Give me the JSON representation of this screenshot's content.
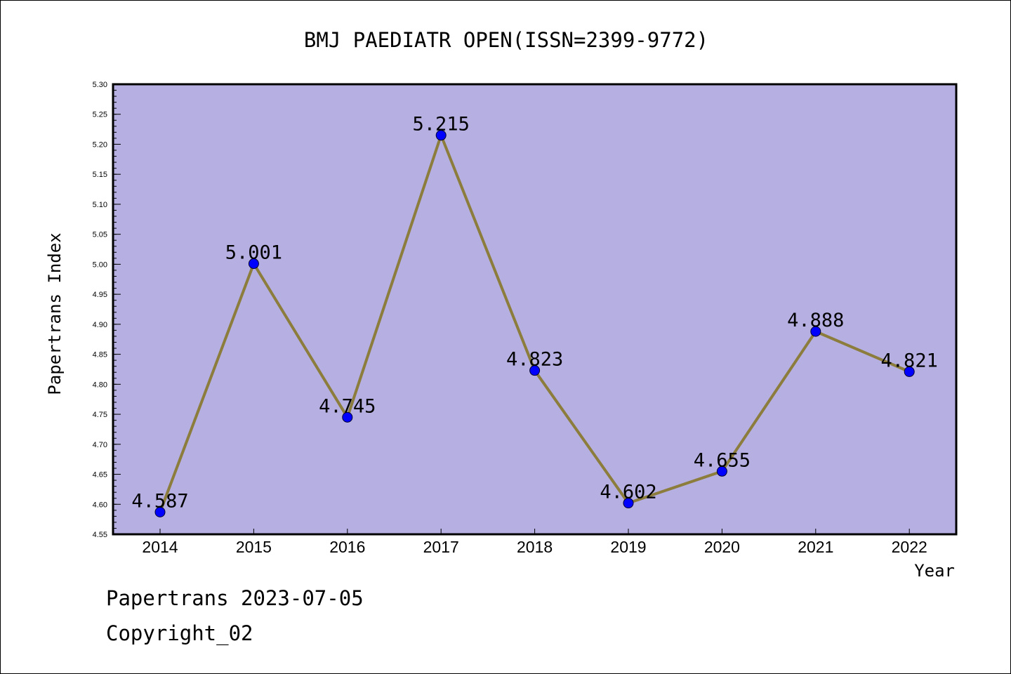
{
  "chart_data": {
    "type": "line",
    "title": "BMJ PAEDIATR OPEN(ISSN=2399-9772)",
    "xlabel": "Year",
    "ylabel": "Papertrans Index",
    "categories": [
      "2014",
      "2015",
      "2016",
      "2017",
      "2018",
      "2019",
      "2020",
      "2021",
      "2022"
    ],
    "values": [
      4.587,
      5.001,
      4.745,
      5.215,
      4.823,
      4.602,
      4.655,
      4.888,
      4.821
    ],
    "value_labels": [
      "4.587",
      "5.001",
      "4.745",
      "5.215",
      "4.823",
      "4.602",
      "4.655",
      "4.888",
      "4.821"
    ],
    "ylim": [
      4.55,
      5.3
    ],
    "yticks": [
      "4.55",
      "4.60",
      "4.65",
      "4.70",
      "4.75",
      "4.80",
      "4.85",
      "4.90",
      "4.95",
      "5.00",
      "5.05",
      "5.10",
      "5.15",
      "5.20",
      "5.25",
      "5.30"
    ],
    "grid": false,
    "legend": "none",
    "colors": {
      "plot_background": "#b5afe2",
      "line": "#8c7d3c",
      "marker": "#0000ff"
    }
  },
  "footer": {
    "line1": "Papertrans 2023-07-05",
    "line2": "Copyright_02"
  }
}
